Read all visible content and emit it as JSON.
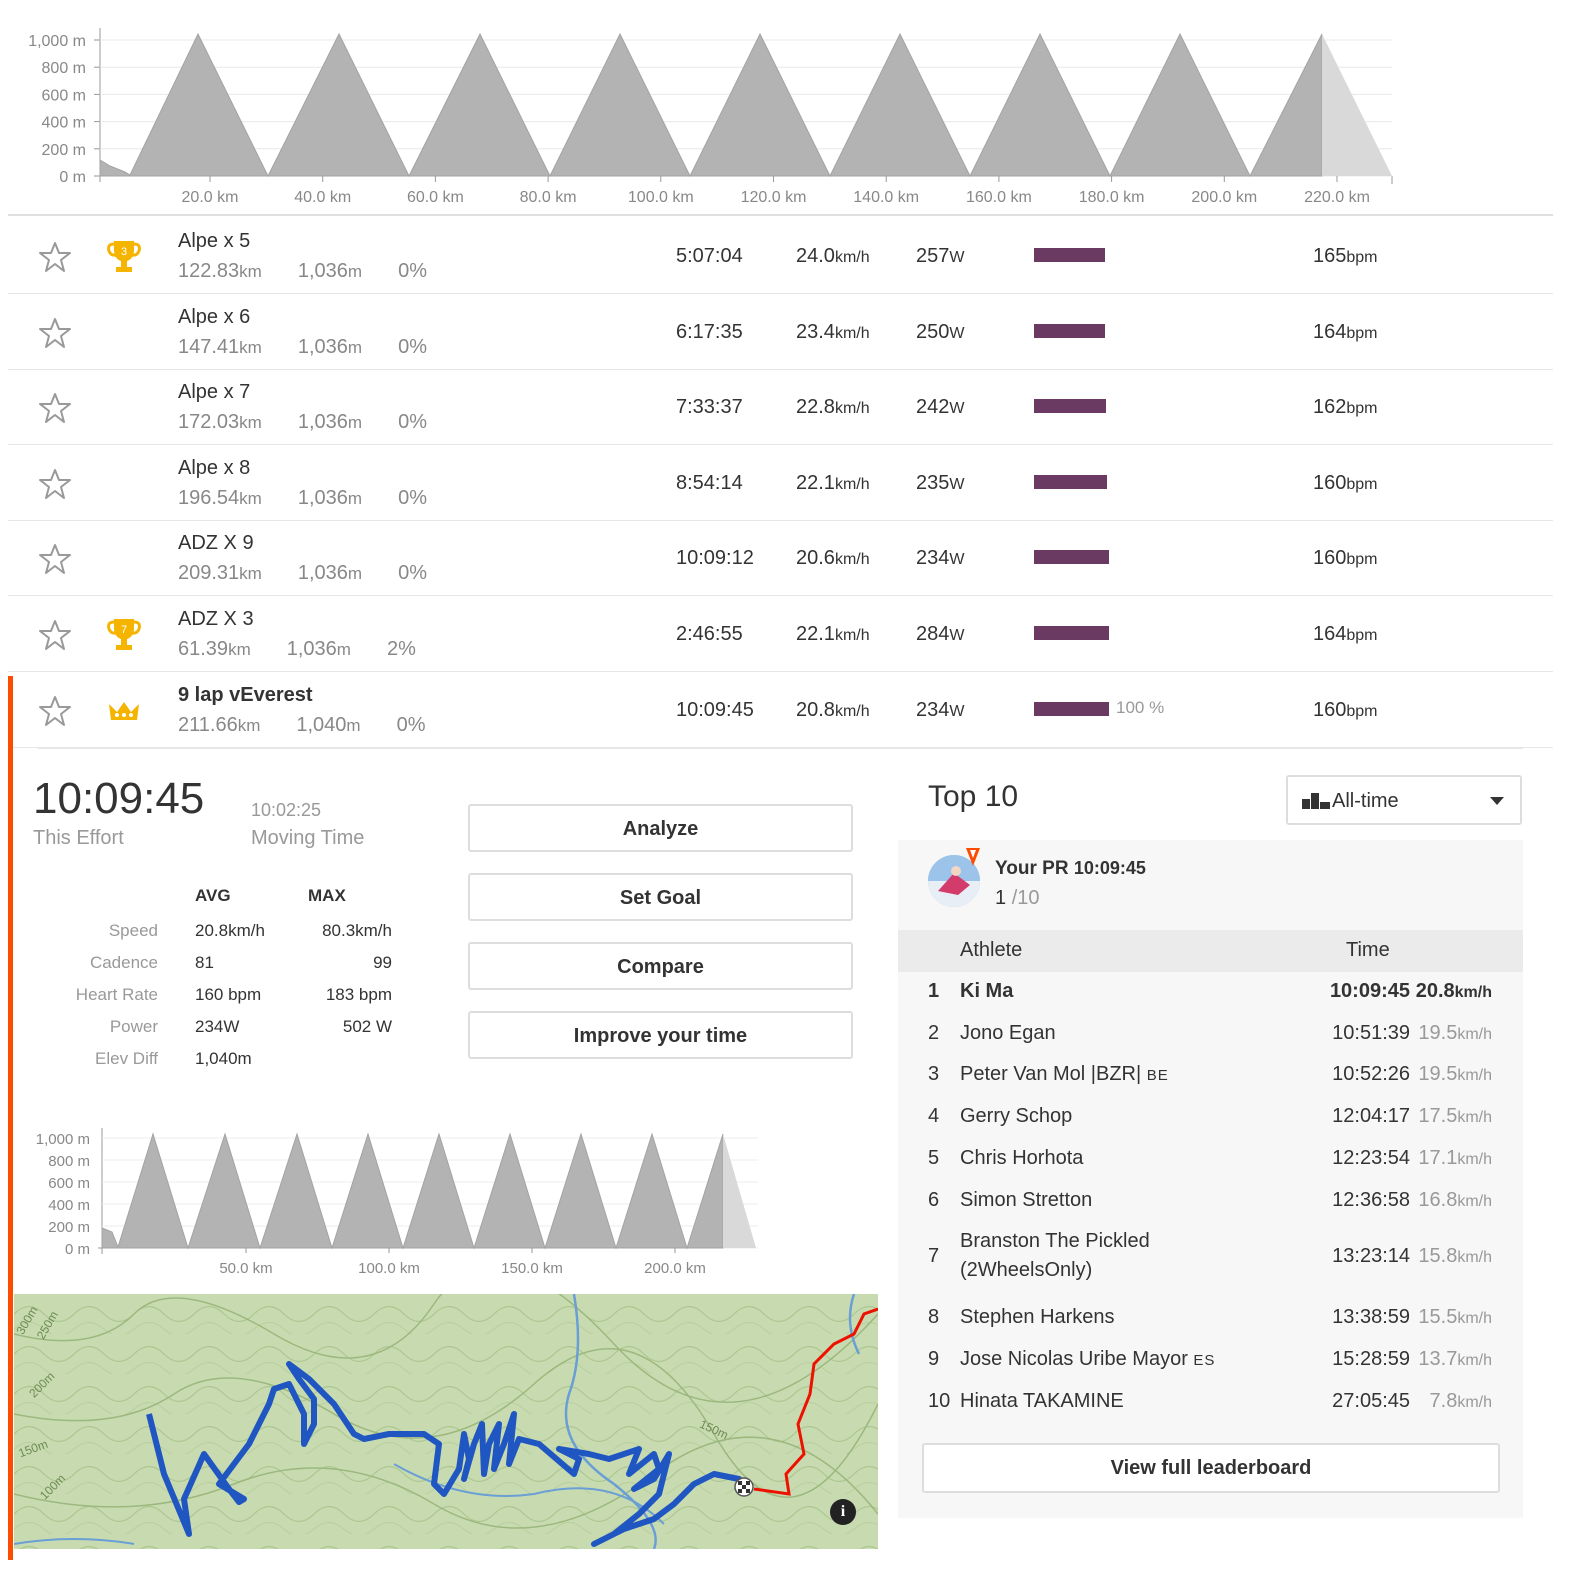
{
  "top_profile": {
    "y_ticks": [
      "1,000 m",
      "800 m",
      "600 m",
      "400 m",
      "200 m",
      "0 m"
    ],
    "x_ticks": [
      "20.0 km",
      "40.0 km",
      "60.0 km",
      "80.0 km",
      "100.0 km",
      "120.0 km",
      "140.0 km",
      "160.0 km",
      "180.0 km",
      "200.0 km",
      "220.0 km"
    ]
  },
  "segments": [
    {
      "name": "Alpe x 5",
      "dist": "122.83",
      "dist_unit": "km",
      "elev": "1,036",
      "elev_unit": "m",
      "grade": "0%",
      "trophy": "3",
      "time": "5:07:04",
      "speed": "24.0",
      "speed_unit": "km/h",
      "power": "257",
      "power_unit": "W",
      "bar_fraction": 0.95,
      "hr": "165",
      "hr_unit": "bpm"
    },
    {
      "name": "Alpe x 6",
      "dist": "147.41",
      "dist_unit": "km",
      "elev": "1,036",
      "elev_unit": "m",
      "grade": "0%",
      "trophy": "",
      "time": "6:17:35",
      "speed": "23.4",
      "speed_unit": "km/h",
      "power": "250",
      "power_unit": "W",
      "bar_fraction": 0.95,
      "hr": "164",
      "hr_unit": "bpm"
    },
    {
      "name": "Alpe x 7",
      "dist": "172.03",
      "dist_unit": "km",
      "elev": "1,036",
      "elev_unit": "m",
      "grade": "0%",
      "trophy": "",
      "time": "7:33:37",
      "speed": "22.8",
      "speed_unit": "km/h",
      "power": "242",
      "power_unit": "W",
      "bar_fraction": 0.96,
      "hr": "162",
      "hr_unit": "bpm"
    },
    {
      "name": "Alpe x 8",
      "dist": "196.54",
      "dist_unit": "km",
      "elev": "1,036",
      "elev_unit": "m",
      "grade": "0%",
      "trophy": "",
      "time": "8:54:14",
      "speed": "22.1",
      "speed_unit": "km/h",
      "power": "235",
      "power_unit": "W",
      "bar_fraction": 0.97,
      "hr": "160",
      "hr_unit": "bpm"
    },
    {
      "name": "ADZ X 9",
      "dist": "209.31",
      "dist_unit": "km",
      "elev": "1,036",
      "elev_unit": "m",
      "grade": "0%",
      "trophy": "",
      "time": "10:09:12",
      "speed": "20.6",
      "speed_unit": "km/h",
      "power": "234",
      "power_unit": "W",
      "bar_fraction": 1.0,
      "hr": "160",
      "hr_unit": "bpm"
    },
    {
      "name": "ADZ X 3",
      "dist": "61.39",
      "dist_unit": "km",
      "elev": "1,036",
      "elev_unit": "m",
      "grade": "2%",
      "trophy": "7",
      "time": "2:46:55",
      "speed": "22.1",
      "speed_unit": "km/h",
      "power": "284",
      "power_unit": "W",
      "bar_fraction": 1.0,
      "hr": "164",
      "hr_unit": "bpm"
    },
    {
      "name": "9 lap vEverest",
      "dist": "211.66",
      "dist_unit": "km",
      "elev": "1,040",
      "elev_unit": "m",
      "grade": "0%",
      "trophy": "crown",
      "time": "10:09:45",
      "speed": "20.8",
      "speed_unit": "km/h",
      "power": "234",
      "power_unit": "W",
      "bar_fraction": 1.0,
      "bar_label": "100 %",
      "hr": "160",
      "hr_unit": "bpm"
    }
  ],
  "effort": {
    "time": "10:09:45",
    "time_label": "This Effort",
    "moving": "10:02:25",
    "moving_label": "Moving Time",
    "avg_header": "AVG",
    "max_header": "MAX",
    "rows": [
      {
        "label": "Speed",
        "avg": "20.8km/h",
        "max": "80.3km/h"
      },
      {
        "label": "Cadence",
        "avg": "81",
        "max": "99"
      },
      {
        "label": "Heart Rate",
        "avg": "160 bpm",
        "max": "183 bpm"
      },
      {
        "label": "Power",
        "avg": "234W",
        "max": "502 W"
      },
      {
        "label": "Elev Diff",
        "avg": "1,040m",
        "max": ""
      }
    ]
  },
  "buttons": {
    "analyze": "Analyze",
    "set_goal": "Set Goal",
    "compare": "Compare",
    "improve": "Improve your time"
  },
  "small_profile": {
    "y_ticks": [
      "1,000 m",
      "800 m",
      "600 m",
      "400 m",
      "200 m",
      "0 m"
    ],
    "x_ticks": [
      "50.0 km",
      "100.0 km",
      "150.0 km",
      "200.0 km"
    ]
  },
  "map": {
    "contours": [
      "300m",
      "250m",
      "200m",
      "150m",
      "100m",
      "150m"
    ]
  },
  "leaderboard": {
    "title": "Top 10",
    "filter": "All-time",
    "pr_label": "Your PR",
    "pr_time": "10:09:45",
    "pr_rank": "1",
    "pr_of": "/10",
    "col_athlete": "Athlete",
    "col_time": "Time",
    "rows": [
      {
        "rank": "1",
        "name": "Ki Ma",
        "tag": "",
        "time": "10:09:45",
        "speed": "20.8",
        "unit": "km/h",
        "me": true
      },
      {
        "rank": "2",
        "name": "Jono Egan",
        "tag": "",
        "time": "10:51:39",
        "speed": "19.5",
        "unit": "km/h"
      },
      {
        "rank": "3",
        "name": "Peter Van Mol |BZR|",
        "tag": "BE",
        "time": "10:52:26",
        "speed": "19.5",
        "unit": "km/h"
      },
      {
        "rank": "4",
        "name": "Gerry Schop",
        "tag": "",
        "time": "12:04:17",
        "speed": "17.5",
        "unit": "km/h"
      },
      {
        "rank": "5",
        "name": "Chris Horhota",
        "tag": "",
        "time": "12:23:54",
        "speed": "17.1",
        "unit": "km/h"
      },
      {
        "rank": "6",
        "name": "Simon Stretton",
        "tag": "",
        "time": "12:36:58",
        "speed": "16.8",
        "unit": "km/h"
      },
      {
        "rank": "7",
        "name": "Branston The Pickled",
        "name2": "(2WheelsOnly)",
        "tag": "",
        "time": "13:23:14",
        "speed": "15.8",
        "unit": "km/h"
      },
      {
        "rank": "8",
        "name": "Stephen Harkens",
        "tag": "",
        "time": "13:38:59",
        "speed": "15.5",
        "unit": "km/h"
      },
      {
        "rank": "9",
        "name": "Jose Nicolas Uribe Mayor",
        "tag": "ES",
        "time": "15:28:59",
        "speed": "13.7",
        "unit": "km/h"
      },
      {
        "rank": "10",
        "name": "Hinata TAKAMINE",
        "tag": "",
        "time": "27:05:45",
        "speed": "7.8",
        "unit": "km/h"
      }
    ],
    "view_full": "View full leaderboard"
  }
}
